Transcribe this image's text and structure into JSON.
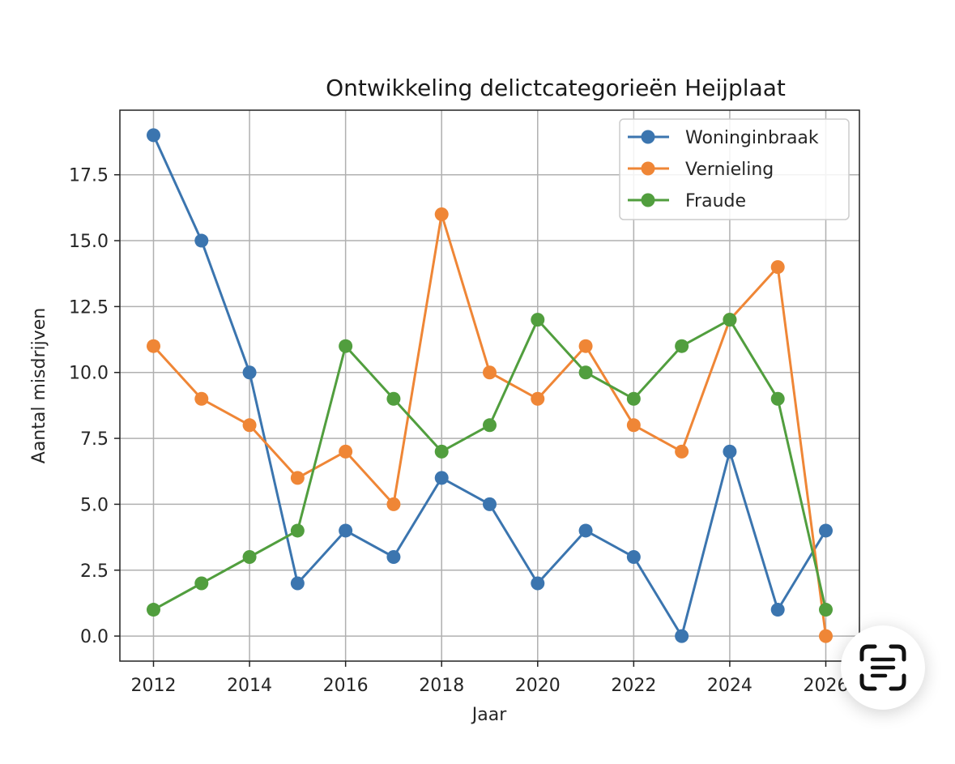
{
  "chart_data": {
    "type": "line",
    "title": "Ontwikkeling delictcategorieën Heijplaat",
    "xlabel": "Jaar",
    "ylabel": "Aantal misdrijven",
    "x": [
      2012,
      2013,
      2014,
      2015,
      2016,
      2017,
      2018,
      2019,
      2020,
      2021,
      2022,
      2023,
      2024,
      2025,
      2026
    ],
    "xticks": [
      "2012",
      "2014",
      "2016",
      "2018",
      "2020",
      "2022",
      "2024",
      "2026"
    ],
    "yticks": [
      "0.0",
      "2.5",
      "5.0",
      "7.5",
      "10.0",
      "12.5",
      "15.0",
      "17.5"
    ],
    "xlim": [
      2011.3,
      2026.7
    ],
    "ylim": [
      -0.95,
      19.95
    ],
    "grid": true,
    "legend_position": "top-right",
    "series": [
      {
        "name": "Woninginbraak",
        "color": "#3b75af",
        "values": [
          19,
          15,
          10,
          2,
          4,
          3,
          6,
          5,
          2,
          4,
          3,
          0,
          7,
          1,
          4
        ]
      },
      {
        "name": "Vernieling",
        "color": "#ef8636",
        "values": [
          11,
          9,
          8,
          6,
          7,
          5,
          16,
          10,
          9,
          11,
          8,
          7,
          12,
          14,
          0
        ]
      },
      {
        "name": "Fraude",
        "color": "#519e3e",
        "values": [
          1,
          2,
          3,
          4,
          11,
          9,
          7,
          8,
          12,
          10,
          9,
          11,
          12,
          9,
          1
        ]
      }
    ]
  },
  "overlay": {
    "scan_icon": "text-scan-icon"
  }
}
